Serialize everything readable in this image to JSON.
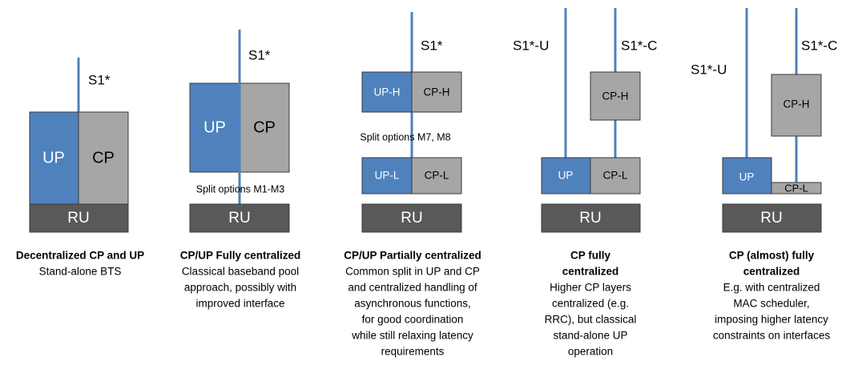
{
  "panels": [
    {
      "interfaces": [
        "S1*"
      ],
      "boxes": [
        "UP",
        "CP",
        "RU"
      ],
      "split": null,
      "title": [
        "Decentralized CP and UP"
      ],
      "body": [
        "Stand-alone BTS"
      ]
    },
    {
      "interfaces": [
        "S1*"
      ],
      "boxes": [
        "UP",
        "CP",
        "RU"
      ],
      "split": "Split options M1-M3",
      "title": [
        "CP/UP Fully centralized"
      ],
      "body": [
        "Classical baseband pool",
        "approach, possibly with",
        "improved interface"
      ]
    },
    {
      "interfaces": [
        "S1*"
      ],
      "boxes": [
        "UP-H",
        "CP-H",
        "UP-L",
        "CP-L",
        "RU"
      ],
      "split": "Split options M7, M8",
      "title": [
        "CP/UP Partially centralized"
      ],
      "body": [
        "Common split in UP and CP",
        "and centralized handling of",
        "asynchronous functions,",
        "for good coordination",
        "while still relaxing latency",
        "requirements"
      ]
    },
    {
      "interfaces": [
        "S1*-U",
        "S1*-C"
      ],
      "boxes": [
        "CP-H",
        "UP",
        "CP-L",
        "RU"
      ],
      "split": null,
      "title": [
        "CP fully",
        "centralized"
      ],
      "body": [
        "Higher CP layers",
        "centralized (e.g.",
        "RRC), but classical",
        "stand-alone UP",
        "operation"
      ]
    },
    {
      "interfaces": [
        "S1*-U",
        "S1*-C"
      ],
      "boxes": [
        "CP-H",
        "UP",
        "CP-L",
        "RU"
      ],
      "split": null,
      "title": [
        "CP (almost) fully",
        "centralized"
      ],
      "body": [
        "E.g. with centralized",
        "MAC scheduler,",
        "imposing higher latency",
        "constraints on interfaces"
      ]
    }
  ]
}
